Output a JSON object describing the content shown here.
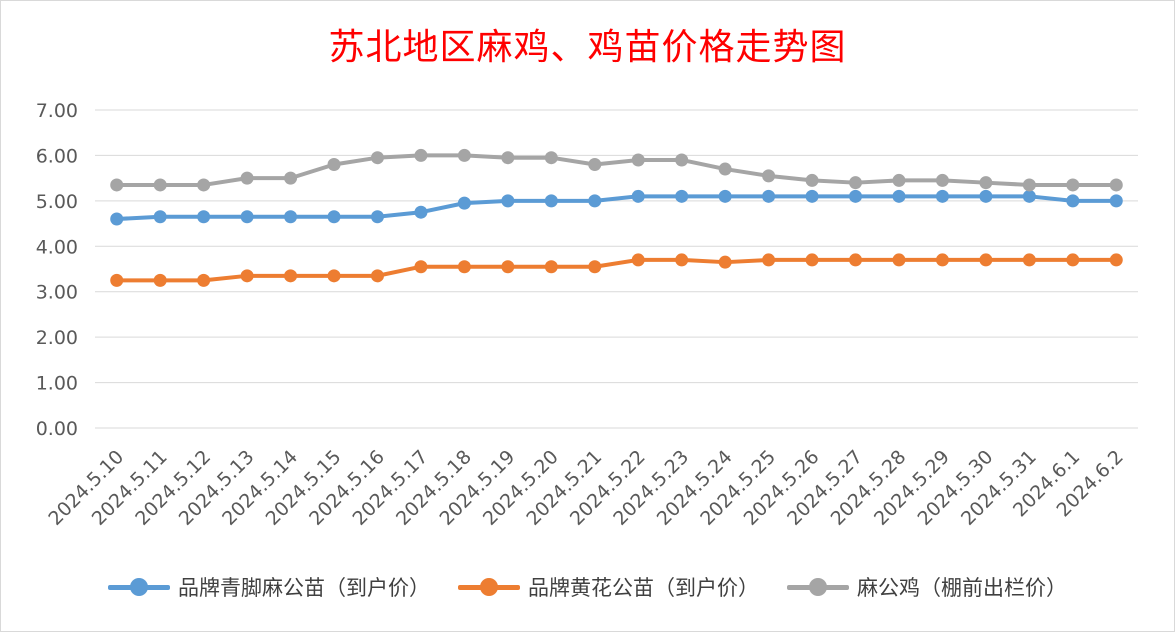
{
  "chart_data": {
    "type": "line",
    "title": "苏北地区麻鸡、鸡苗价格走势图",
    "xlabel": "",
    "ylabel": "",
    "ylim": [
      0,
      7
    ],
    "yticks": [
      "0.00",
      "1.00",
      "2.00",
      "3.00",
      "4.00",
      "5.00",
      "6.00",
      "7.00"
    ],
    "grid": "horizontal",
    "legend_position": "bottom",
    "categories": [
      "2024.5.10",
      "2024.5.11",
      "2024.5.12",
      "2024.5.13",
      "2024.5.14",
      "2024.5.15",
      "2024.5.16",
      "2024.5.17",
      "2024.5.18",
      "2024.5.19",
      "2024.5.20",
      "2024.5.21",
      "2024.5.22",
      "2024.5.23",
      "2024.5.24",
      "2024.5.25",
      "2024.5.26",
      "2024.5.27",
      "2024.5.28",
      "2024.5.29",
      "2024.5.30",
      "2024.5.31",
      "2024.6.1",
      "2024.6.2"
    ],
    "series": [
      {
        "name": "品牌青脚麻公苗（到户价）",
        "color": "#5b9bd5",
        "values": [
          4.6,
          4.65,
          4.65,
          4.65,
          4.65,
          4.65,
          4.65,
          4.75,
          4.95,
          5.0,
          5.0,
          5.0,
          5.1,
          5.1,
          5.1,
          5.1,
          5.1,
          5.1,
          5.1,
          5.1,
          5.1,
          5.1,
          5.0,
          5.0
        ]
      },
      {
        "name": "品牌黄花公苗（到户价）",
        "color": "#ed7d31",
        "values": [
          3.25,
          3.25,
          3.25,
          3.35,
          3.35,
          3.35,
          3.35,
          3.55,
          3.55,
          3.55,
          3.55,
          3.55,
          3.7,
          3.7,
          3.65,
          3.7,
          3.7,
          3.7,
          3.7,
          3.7,
          3.7,
          3.7,
          3.7,
          3.7
        ]
      },
      {
        "name": "麻公鸡（棚前出栏价）",
        "color": "#a5a5a5",
        "values": [
          5.35,
          5.35,
          5.35,
          5.5,
          5.5,
          5.8,
          5.95,
          6.0,
          6.0,
          5.95,
          5.95,
          5.8,
          5.9,
          5.9,
          5.7,
          5.55,
          5.45,
          5.4,
          5.45,
          5.45,
          5.4,
          5.35,
          5.35,
          5.35
        ]
      }
    ]
  }
}
